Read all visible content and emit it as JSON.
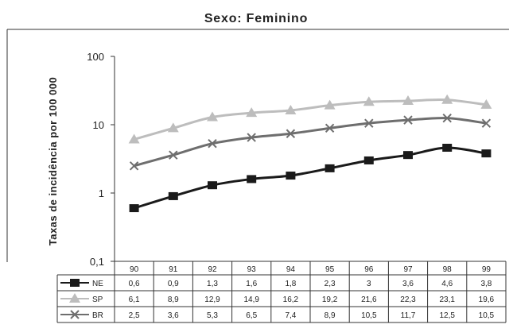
{
  "chart_data": {
    "type": "line",
    "title": "Sexo: Feminino",
    "ylabel": "Taxas de incidência por 100 000",
    "xlabel": "",
    "yscale": "log",
    "ylim": [
      0.1,
      100
    ],
    "yticks": [
      "0,1",
      "1",
      "10",
      "100"
    ],
    "categories": [
      "90",
      "91",
      "92",
      "93",
      "94",
      "95",
      "96",
      "97",
      "98",
      "99"
    ],
    "grid": false,
    "legend": "data-table-left",
    "series": [
      {
        "name": "NE",
        "color": "#1a1a1a",
        "marker": "square",
        "values": [
          0.6,
          0.9,
          1.3,
          1.6,
          1.8,
          2.3,
          3,
          3.6,
          4.6,
          3.8
        ],
        "labels": [
          "0,6",
          "0,9",
          "1,3",
          "1,6",
          "1,8",
          "2,3",
          "3",
          "3,6",
          "4,6",
          "3,8"
        ]
      },
      {
        "name": "SP",
        "color": "#bdbdbd",
        "marker": "triangle",
        "values": [
          6.1,
          8.9,
          12.9,
          14.9,
          16.2,
          19.2,
          21.6,
          22.3,
          23.1,
          19.6
        ],
        "labels": [
          "6,1",
          "8,9",
          "12,9",
          "14,9",
          "16,2",
          "19,2",
          "21,6",
          "22,3",
          "23,1",
          "19,6"
        ]
      },
      {
        "name": "BR",
        "color": "#6e6e6e",
        "marker": "x",
        "values": [
          2.5,
          3.6,
          5.3,
          6.5,
          7.4,
          8.9,
          10.5,
          11.7,
          12.5,
          10.5
        ],
        "labels": [
          "2,5",
          "3,6",
          "5,3",
          "6,5",
          "7,4",
          "8,9",
          "10,5",
          "11,7",
          "12,5",
          "10,5"
        ]
      }
    ]
  }
}
